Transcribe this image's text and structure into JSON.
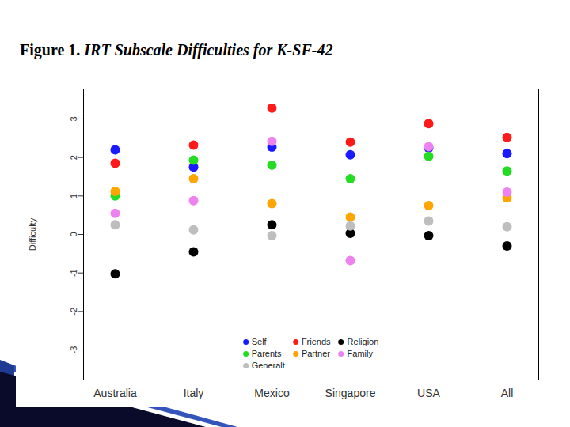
{
  "chart_data": {
    "type": "scatter",
    "title": "Figure 1. IRT Subscale Difficulties for K-SF-42",
    "ylabel": "Difficulty",
    "categories": [
      "Australia",
      "Italy",
      "Mexico",
      "Singapore",
      "USA",
      "All"
    ],
    "series": [
      {
        "name": "Self",
        "color": "#1a1aff",
        "values": [
          2.2,
          1.75,
          2.27,
          2.07,
          2.25,
          2.1
        ]
      },
      {
        "name": "Friends",
        "color": "#ff1a1a",
        "values": [
          1.85,
          2.32,
          3.28,
          2.4,
          2.88,
          2.52
        ]
      },
      {
        "name": "Religion",
        "color": "#000000",
        "values": [
          -1.02,
          -0.45,
          0.25,
          0.03,
          -0.03,
          -0.3
        ]
      },
      {
        "name": "Parents",
        "color": "#22dd22",
        "values": [
          1.0,
          1.93,
          1.8,
          1.45,
          2.03,
          1.65
        ]
      },
      {
        "name": "Partner",
        "color": "#ffa500",
        "values": [
          1.12,
          1.45,
          0.8,
          0.45,
          0.75,
          0.95
        ]
      },
      {
        "name": "Family",
        "color": "#ee82ee",
        "values": [
          0.55,
          0.88,
          2.42,
          -0.68,
          2.28,
          1.1
        ]
      },
      {
        "name": "Generalt",
        "color": "#bebebe",
        "values": [
          0.25,
          0.12,
          -0.03,
          0.22,
          0.35,
          0.2
        ]
      }
    ],
    "ylim": [
      -3.78,
      3.78
    ],
    "yticks": [
      -3,
      -2,
      -1,
      0,
      1,
      2,
      3
    ],
    "grid": false,
    "legend": "bottom",
    "marker": "circle"
  }
}
